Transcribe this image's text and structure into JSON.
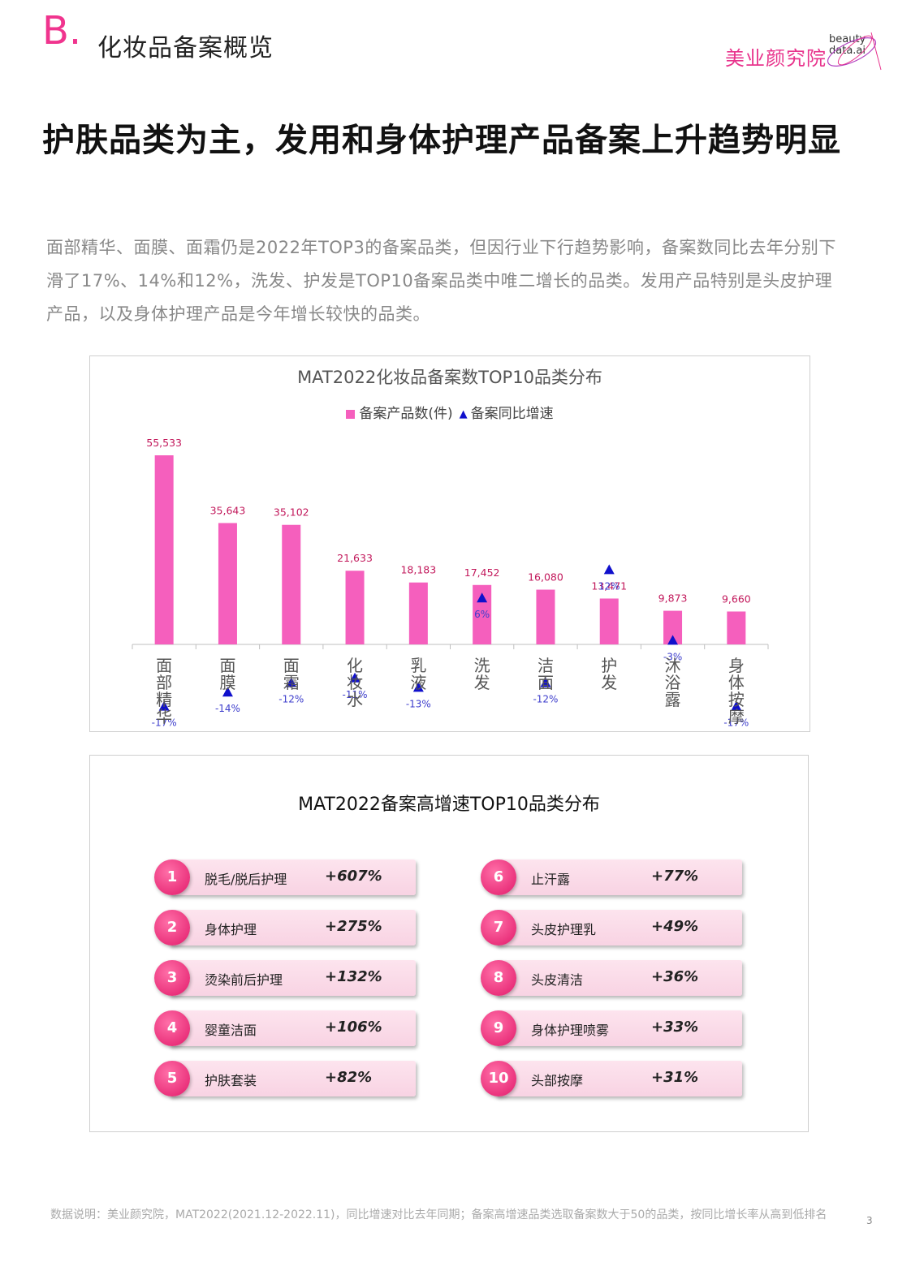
{
  "header": {
    "section_letter": "B.",
    "section_title": "化妆品备案概览",
    "logo_cn": "美业颜究院",
    "logo_en_line1": "beauty",
    "logo_en_line2": "data.ai"
  },
  "headline": "护肤品类为主，发用和身体护理产品备案上升趋势明显",
  "intro": "面部精华、面膜、面霜仍是2022年TOP3的备案品类，但因行业下行趋势影响，备案数同比去年分别下滑了17%、14%和12%，洗发、护发是TOP10备案品类中唯二增长的品类。发用产品特别是头皮护理产品，以及身体护理产品是今年增长较快的品类。",
  "chart_data": [
    {
      "type": "bar",
      "title": "MAT2022化妆品备案数TOP10品类分布",
      "categories": [
        "面部精华",
        "面膜",
        "面霜",
        "化妆水",
        "乳液",
        "洗发",
        "洁面",
        "护发",
        "沐浴露",
        "身体按摩"
      ],
      "series": [
        {
          "name": "备案产品数(件)",
          "values": [
            55533,
            35643,
            35102,
            21633,
            18183,
            17452,
            16080,
            13471,
            9873,
            9660
          ],
          "labels": [
            "55,533",
            "35,643",
            "35,102",
            "21,633",
            "18,183",
            "17,452",
            "16,080",
            "13,471",
            "9,873",
            "9,660"
          ]
        },
        {
          "name": "备案同比增速",
          "values": [
            -17,
            -14,
            -12,
            -11,
            -13,
            6,
            -12,
            12,
            -3,
            -17
          ],
          "labels": [
            "-17%",
            "-14%",
            "-12%",
            "-11%",
            "-13%",
            "6%",
            "-12%",
            "12%",
            "-3%",
            "-17%"
          ]
        }
      ],
      "legend_position": "top",
      "colors": {
        "bar": "#f55fbd",
        "marker": "#1010cc",
        "bar_label": "#c2185b",
        "marker_label": "#3d3dcc"
      }
    },
    {
      "type": "table",
      "title": "MAT2022备案高增速TOP10品类分布",
      "rows": [
        {
          "rank": "1",
          "name": "脱毛/脱后护理",
          "growth": "+607%"
        },
        {
          "rank": "2",
          "name": "身体护理",
          "growth": "+275%"
        },
        {
          "rank": "3",
          "name": "烫染前后护理",
          "growth": "+132%"
        },
        {
          "rank": "4",
          "name": "婴童洁面",
          "growth": "+106%"
        },
        {
          "rank": "5",
          "name": "护肤套装",
          "growth": "+82%"
        },
        {
          "rank": "6",
          "name": "止汗露",
          "growth": "+77%"
        },
        {
          "rank": "7",
          "name": "头皮护理乳",
          "growth": "+49%"
        },
        {
          "rank": "8",
          "name": "头皮清洁",
          "growth": "+36%"
        },
        {
          "rank": "9",
          "name": "身体护理喷雾",
          "growth": "+33%"
        },
        {
          "rank": "10",
          "name": "头部按摩",
          "growth": "+31%"
        }
      ]
    }
  ],
  "footnote": "数据说明：美业颜究院，MAT2022(2021.12-2022.11)，同比增速对比去年同期；备案高增速品类选取备案数大于50的品类，按同比增长率从高到低排名",
  "page_number": "3"
}
